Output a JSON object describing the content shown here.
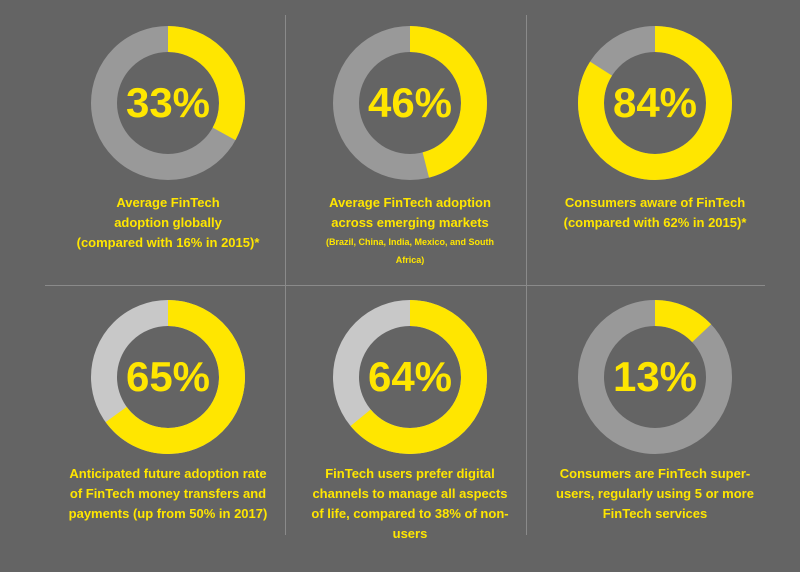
{
  "colors": {
    "background": "#646464",
    "accent": "#ffe600",
    "ring_dark": "#999999",
    "ring_light": "#c8c8c8"
  },
  "chart_data": [
    {
      "type": "pie",
      "values": [
        33,
        67
      ],
      "value_label": "33%",
      "caption_lines": [
        "Average FinTech",
        "adoption globally",
        "(compared with 16% in 2015)*"
      ],
      "ring_color": "#999999"
    },
    {
      "type": "pie",
      "values": [
        46,
        54
      ],
      "value_label": "46%",
      "caption_lines": [
        "Average FinTech adoption",
        "across emerging markets"
      ],
      "subcaption_lines": [
        "(Brazil, China, India, Mexico, and South",
        "Africa)"
      ],
      "ring_color": "#999999"
    },
    {
      "type": "pie",
      "values": [
        84,
        16
      ],
      "value_label": "84%",
      "caption_lines": [
        "Consumers aware of FinTech",
        "(compared with 62% in 2015)*"
      ],
      "ring_color": "#999999"
    },
    {
      "type": "pie",
      "values": [
        65,
        35
      ],
      "value_label": "65%",
      "caption_lines": [
        "Anticipated future adoption rate",
        "of FinTech money transfers and",
        "payments (up from 50% in 2017)"
      ],
      "ring_color": "#c8c8c8"
    },
    {
      "type": "pie",
      "values": [
        64,
        36
      ],
      "value_label": "64%",
      "caption_lines": [
        "FinTech users prefer digital",
        "channels to manage all aspects",
        "of life, compared to 38% of non-",
        "users"
      ],
      "ring_color": "#c8c8c8"
    },
    {
      "type": "pie",
      "values": [
        13,
        87
      ],
      "value_label": "13%",
      "caption_lines": [
        "Consumers are FinTech super-",
        "users, regularly using 5 or more",
        "FinTech services"
      ],
      "ring_color": "#999999"
    }
  ]
}
